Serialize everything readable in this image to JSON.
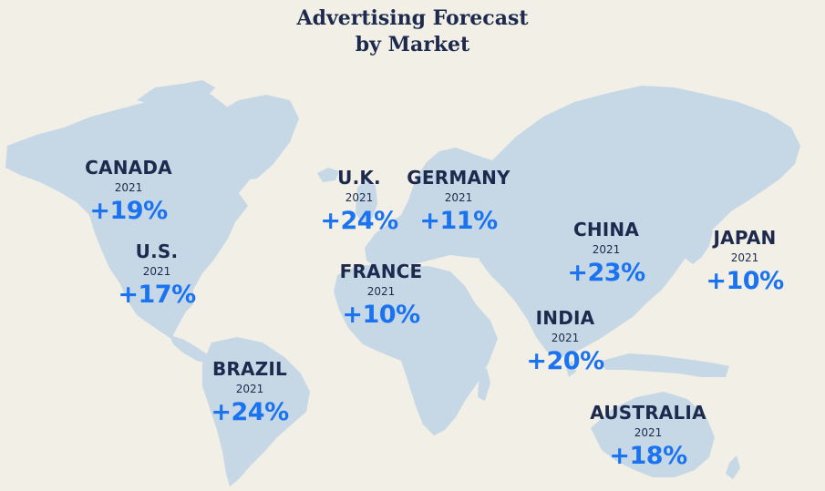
{
  "title": {
    "line1": "Advertising Forecast",
    "line2": "by Market"
  },
  "colors": {
    "background": "#f1efe6",
    "land": "#c6d8e6",
    "heading": "#1d2a4d",
    "accent": "#1b73f0"
  },
  "markets": [
    {
      "id": "canada",
      "country": "CANADA",
      "year": "2021",
      "growth": "+19%"
    },
    {
      "id": "us",
      "country": "U.S.",
      "year": "2021",
      "growth": "+17%"
    },
    {
      "id": "brazil",
      "country": "BRAZIL",
      "year": "2021",
      "growth": "+24%"
    },
    {
      "id": "uk",
      "country": "U.K.",
      "year": "2021",
      "growth": "+24%"
    },
    {
      "id": "germany",
      "country": "GERMANY",
      "year": "2021",
      "growth": "+11%"
    },
    {
      "id": "france",
      "country": "FRANCE",
      "year": "2021",
      "growth": "+10%"
    },
    {
      "id": "china",
      "country": "CHINA",
      "year": "2021",
      "growth": "+23%"
    },
    {
      "id": "japan",
      "country": "JAPAN",
      "year": "2021",
      "growth": "+10%"
    },
    {
      "id": "india",
      "country": "INDIA",
      "year": "2021",
      "growth": "+20%"
    },
    {
      "id": "australia",
      "country": "AUSTRALIA",
      "year": "2021",
      "growth": "+18%"
    }
  ]
}
